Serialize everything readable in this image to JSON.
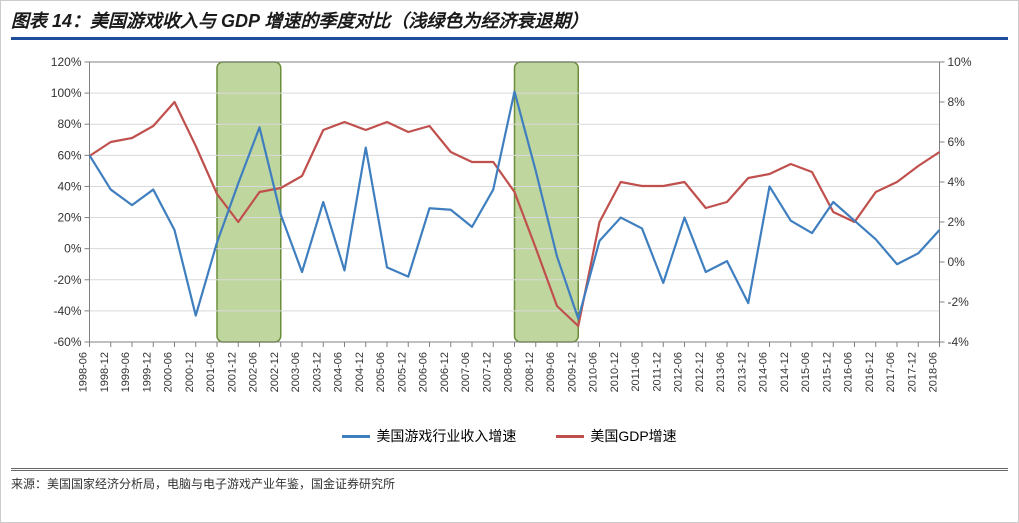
{
  "title": "图表 14：美国游戏收入与 GDP 增速的季度对比（浅绿色为经济衰退期）",
  "source": "来源：美国国家经济分析局，电脑与电子游戏产业年鉴，国金证券研究所",
  "legend": {
    "series1": "美国游戏行业收入增速",
    "series2": "美国GDP增速"
  },
  "chart": {
    "type": "dual-axis-line",
    "background_color": "#ffffff",
    "grid_color": "#d9d9d9",
    "recession_color": "rgba(140,180,80,0.55)",
    "recession_border": "#6b8e3a",
    "axis_color": "#808080",
    "left_axis": {
      "min": -60,
      "max": 120,
      "step": 20,
      "ticks": [
        "120%",
        "100%",
        "80%",
        "60%",
        "40%",
        "20%",
        "0%",
        "-20%",
        "-40%",
        "-60%"
      ]
    },
    "right_axis": {
      "min": -4,
      "max": 10,
      "step": 2,
      "ticks": [
        "10%",
        "8%",
        "6%",
        "4%",
        "2%",
        "0%",
        "-2%",
        "-4%"
      ]
    },
    "x_labels": [
      "1998-06",
      "1998-12",
      "1999-06",
      "1999-12",
      "2000-06",
      "2000-12",
      "2001-06",
      "2001-12",
      "2002-06",
      "2002-12",
      "2003-06",
      "2003-12",
      "2004-06",
      "2004-12",
      "2005-06",
      "2005-12",
      "2006-06",
      "2006-12",
      "2007-06",
      "2007-12",
      "2008-06",
      "2008-12",
      "2009-06",
      "2009-12",
      "2010-06",
      "2010-12",
      "2011-06",
      "2011-12",
      "2012-06",
      "2012-12",
      "2013-06",
      "2013-12",
      "2014-06",
      "2014-12",
      "2015-06",
      "2015-12",
      "2016-06",
      "2016-12",
      "2017-06",
      "2017-12",
      "2018-06"
    ],
    "recession_bands": [
      {
        "start_idx": 6,
        "end_idx": 9
      },
      {
        "start_idx": 20,
        "end_idx": 23
      }
    ],
    "series1": {
      "name": "美国游戏行业收入增速",
      "color": "#3f7fbf",
      "line_width": 2.2,
      "axis": "left",
      "values": [
        60,
        38,
        28,
        38,
        12,
        -43,
        4,
        42,
        78,
        22,
        -15,
        30,
        -14,
        65,
        -12,
        -18,
        26,
        25,
        14,
        38,
        101,
        50,
        -5,
        -45,
        5,
        20,
        13,
        -22,
        20,
        -15,
        -8,
        -35,
        40,
        18,
        10,
        30,
        18,
        6,
        -10,
        -3,
        12
      ]
    },
    "series2": {
      "name": "美国GDP增速",
      "color": "#c0504d",
      "line_width": 2.2,
      "axis": "right",
      "values": [
        5.3,
        6.0,
        6.2,
        6.8,
        8.0,
        5.8,
        3.4,
        2.0,
        3.5,
        3.7,
        4.3,
        6.6,
        7.0,
        6.6,
        7.0,
        6.5,
        6.8,
        5.5,
        5.0,
        5.0,
        3.5,
        0.7,
        -2.2,
        -3.2,
        2.0,
        4.0,
        3.8,
        3.8,
        4.0,
        2.7,
        3.0,
        4.2,
        4.4,
        4.9,
        4.5,
        2.5,
        2.0,
        3.5,
        4.0,
        4.8,
        5.5
      ]
    }
  }
}
